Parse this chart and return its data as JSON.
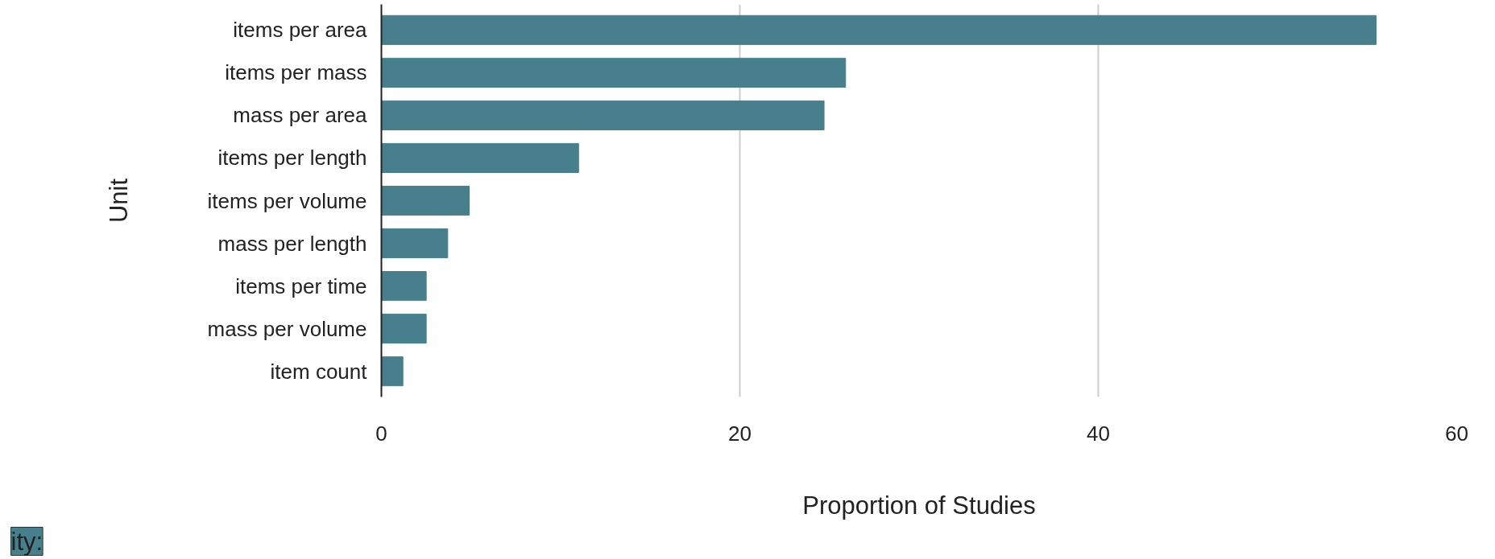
{
  "chart_data": {
    "type": "bar",
    "orientation": "horizontal",
    "xlabel": "Proportion of Studies",
    "ylabel": "Unit",
    "categories": [
      "items per area",
      "items per mass",
      "mass per area",
      "items per length",
      "items per volume",
      "mass per length",
      "items per time",
      "mass per volume",
      "item count"
    ],
    "values": [
      55.5,
      25.9,
      24.7,
      11.0,
      4.9,
      3.7,
      2.5,
      2.5,
      1.2
    ],
    "color": "#477f8c",
    "xlim": [
      0,
      60
    ],
    "xticks": [
      0,
      20,
      40,
      60
    ],
    "grid": "x",
    "annotations": [
      "ity:"
    ]
  }
}
